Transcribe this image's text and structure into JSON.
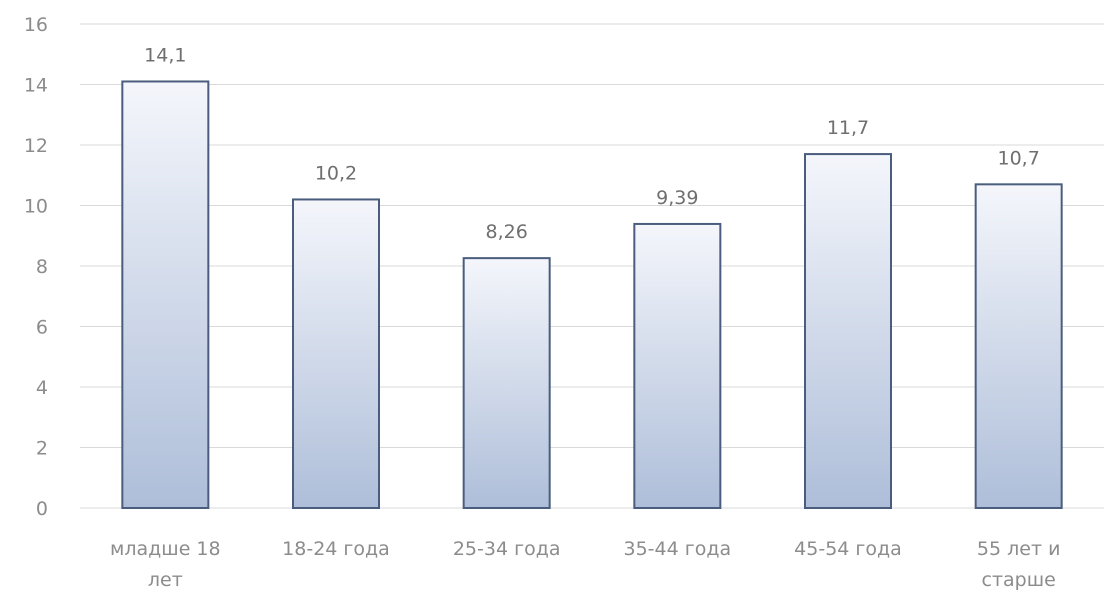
{
  "chart_data": {
    "type": "bar",
    "title": "",
    "xlabel": "",
    "ylabel": "",
    "categories": [
      [
        "младше 18",
        "лет"
      ],
      [
        "18-24 года"
      ],
      [
        "25-34 года"
      ],
      [
        "35-44 года"
      ],
      [
        "45-54 года"
      ],
      [
        "55 лет и",
        "старше"
      ]
    ],
    "values": [
      14.1,
      10.2,
      8.26,
      9.39,
      11.7,
      10.7
    ],
    "value_labels": [
      "14,1",
      "10,2",
      "8,26",
      "9,39",
      "11,7",
      "10,7"
    ],
    "ylim": [
      0,
      16
    ],
    "yticks": [
      0,
      2,
      4,
      6,
      8,
      10,
      12,
      14,
      16
    ],
    "grid": true,
    "legend": "none",
    "colors": {
      "bar_top": "#f4f6fb",
      "bar_bottom": "#aebed9",
      "bar_border": "#4a5d7e",
      "grid": "#d9d9d9",
      "axis_text": "#8c8c8c",
      "label_text": "#6f6f6f"
    }
  }
}
